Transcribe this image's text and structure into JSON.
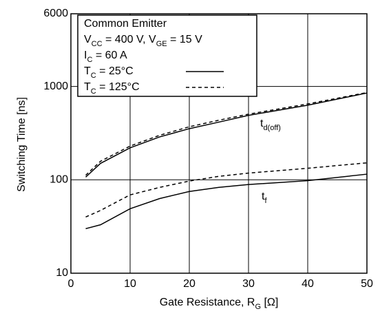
{
  "chart_data": {
    "type": "line",
    "x_label": [
      "Gate Resistance, R",
      {
        "sub": "G"
      },
      " [Ω]"
    ],
    "y_label": "Switching Time [ns]",
    "annotation": [
      [
        "Common Emitter"
      ],
      [
        "V",
        {
          "sub": "CC"
        },
        " = 400 V, V",
        {
          "sub": "GE"
        },
        " = 15 V"
      ],
      [
        "I",
        {
          "sub": "C"
        },
        " = 60 A"
      ]
    ],
    "x": [
      2.5,
      5,
      10,
      15,
      20,
      25,
      30,
      40,
      50
    ],
    "series": [
      {
        "name": [
          "T",
          {
            "sub": "C"
          },
          " = 25°C"
        ],
        "color": "#000000",
        "dashed": false,
        "values": [
          107,
          150,
          220,
          288,
          353,
          415,
          490,
          630,
          850
        ]
      },
      {
        "name": [
          "T",
          {
            "sub": "C"
          },
          " = 125°C"
        ],
        "color": "#000000",
        "dashed": true,
        "values": [
          112,
          158,
          230,
          300,
          370,
          435,
          505,
          650,
          860
        ]
      },
      {
        "color": "#000000",
        "dashed": false,
        "values": [
          30,
          33,
          49,
          63,
          75,
          83,
          89,
          98,
          115
        ]
      },
      {
        "color": "#000000",
        "dashed": true,
        "values": [
          40,
          47,
          69,
          83,
          97,
          109,
          118,
          133,
          152
        ]
      }
    ],
    "curve_labels": [
      [
        "t",
        {
          "sub": "d(off)"
        }
      ],
      [
        "t",
        {
          "sub": "f"
        }
      ]
    ],
    "xlim": [
      0,
      50
    ],
    "xticks": [
      0,
      10,
      20,
      30,
      40,
      50
    ],
    "ylim": [
      10,
      6000
    ],
    "yticks": [
      10,
      100,
      1000,
      6000
    ],
    "ylog": true,
    "grid": true
  }
}
